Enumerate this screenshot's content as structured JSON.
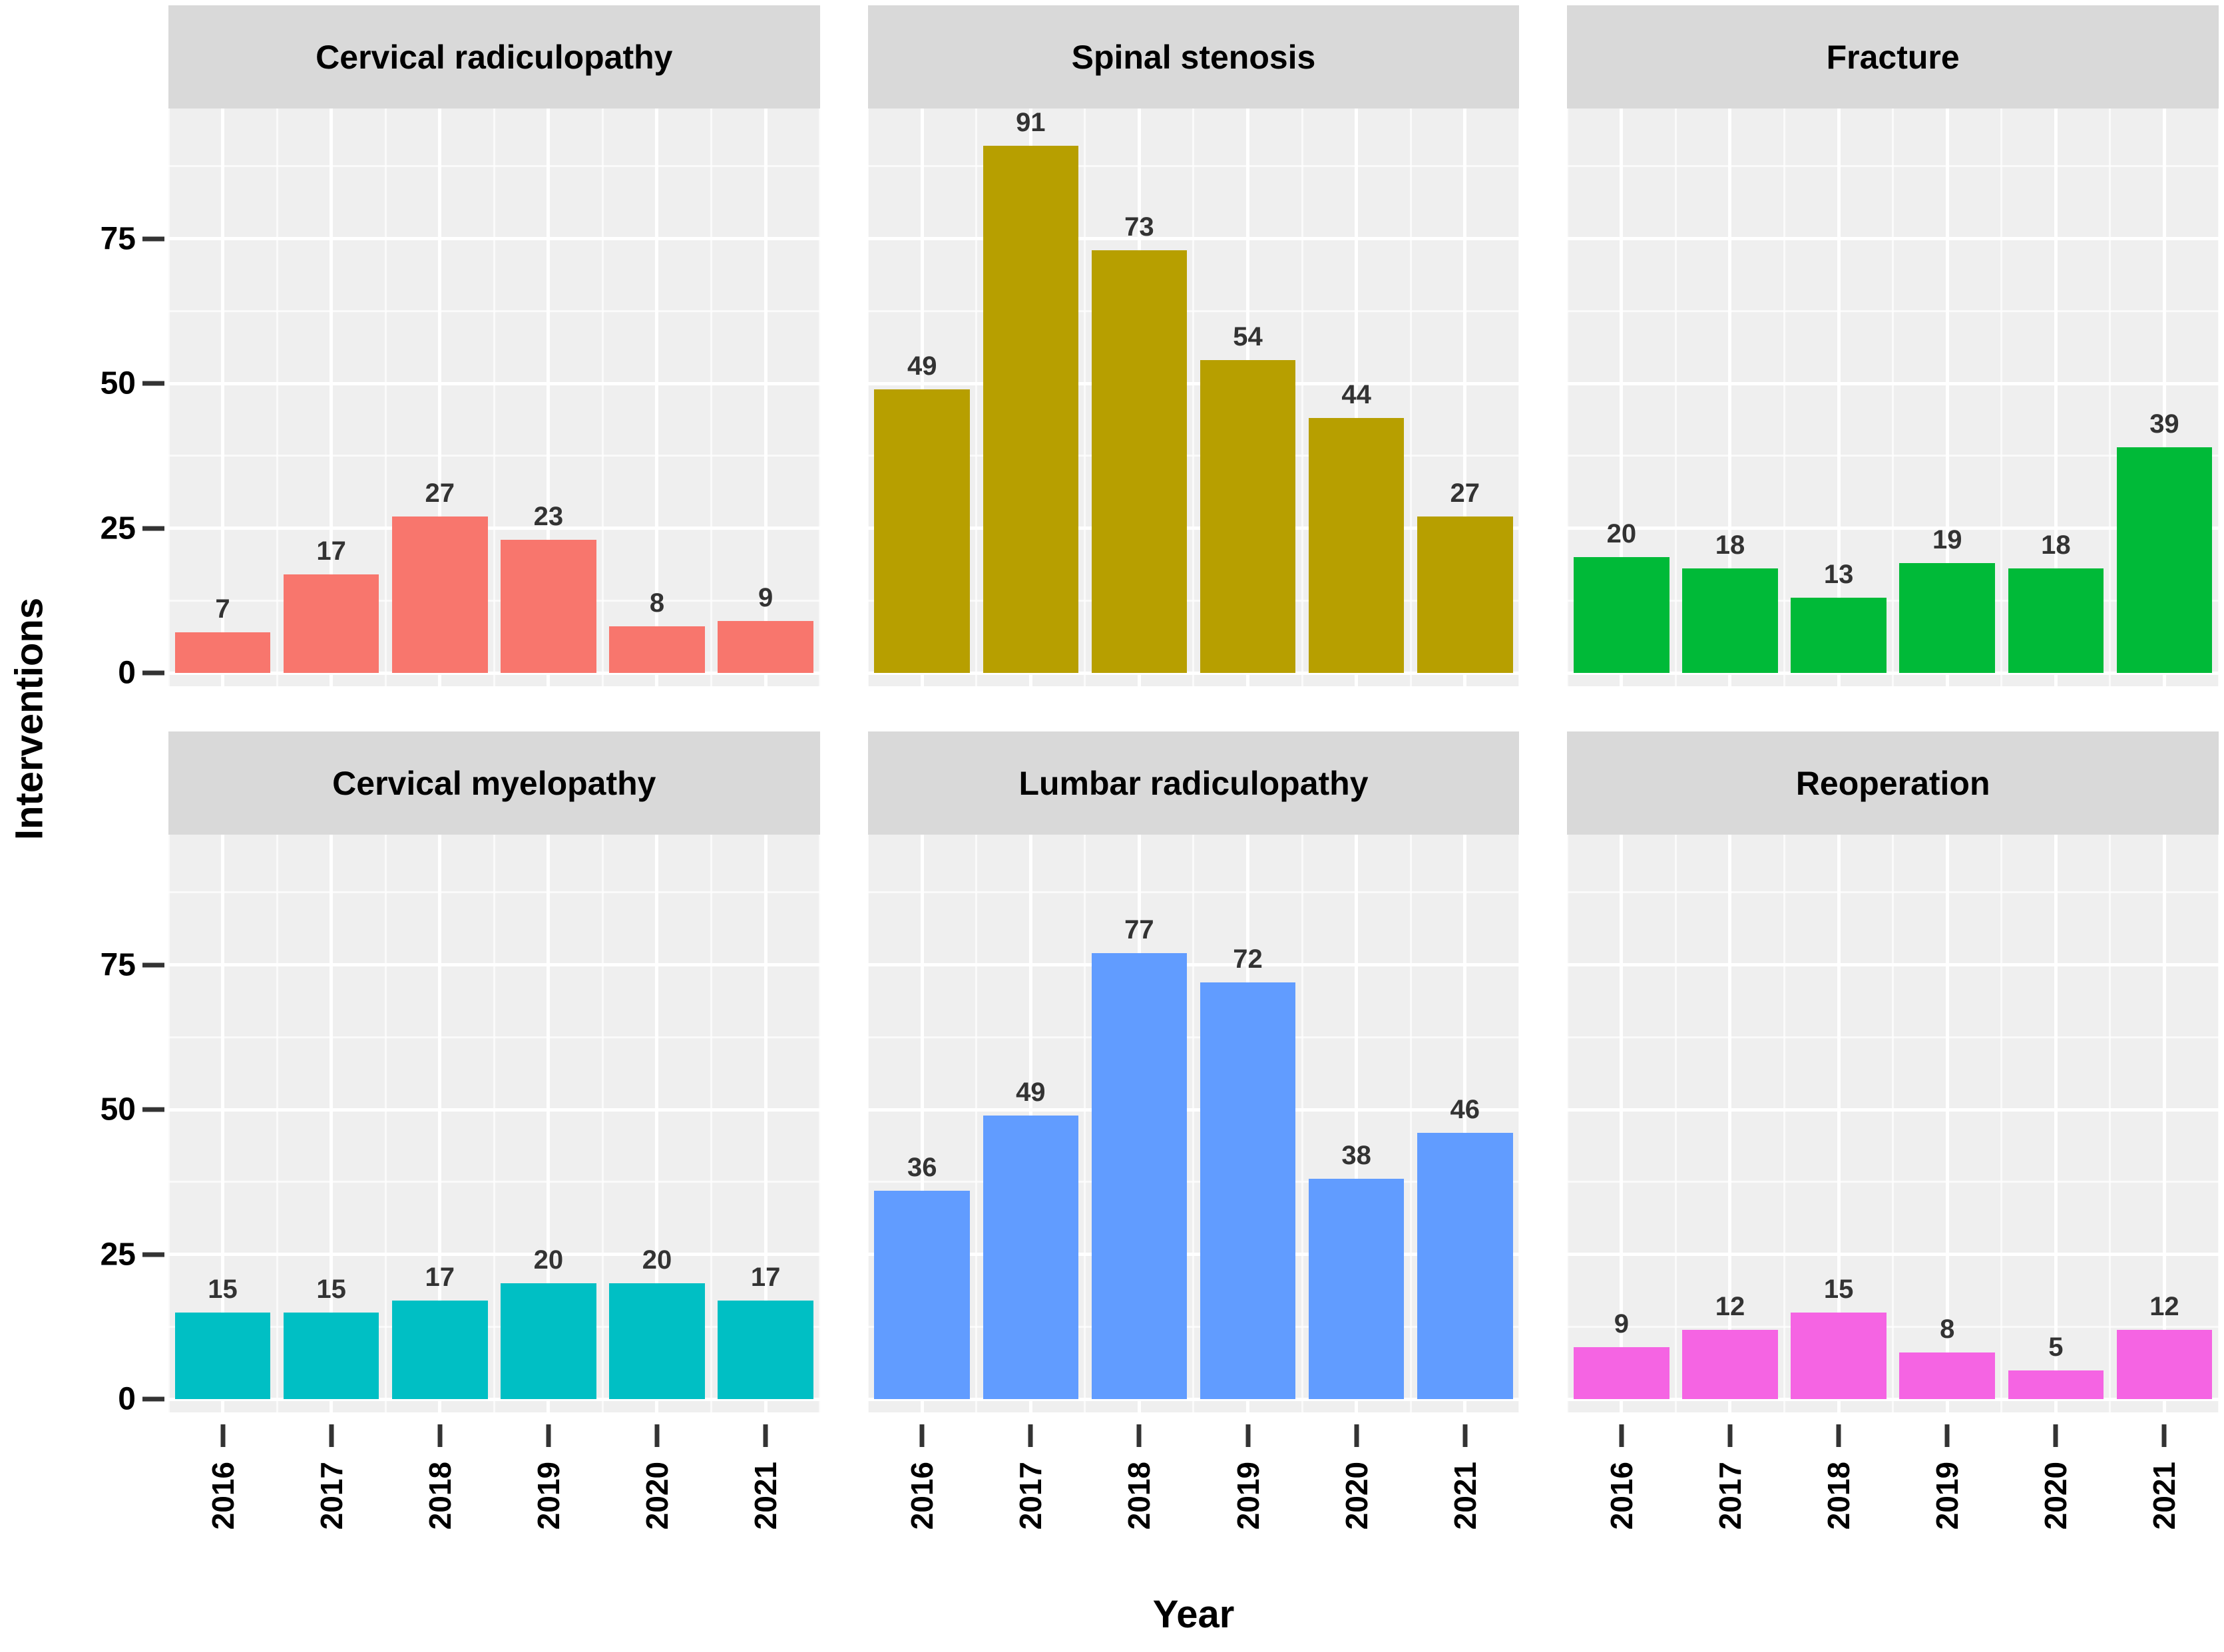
{
  "figure": {
    "y_axis_title": "Interventions",
    "x_axis_title": "Year"
  },
  "chart_data": {
    "type": "bar",
    "categories": [
      "2016",
      "2017",
      "2018",
      "2019",
      "2020",
      "2021"
    ],
    "xlabel": "Year",
    "ylabel": "Interventions",
    "y_ticks": [
      0,
      25,
      50,
      75
    ],
    "ylim": [
      0,
      97
    ],
    "grid": true,
    "legend": false,
    "bar_value_labels": true,
    "facets": [
      {
        "title": "Cervical radiculopathy",
        "color": "#F8766D",
        "values": [
          7,
          17,
          27,
          23,
          8,
          9
        ]
      },
      {
        "title": "Spinal stenosis",
        "color": "#B79F00",
        "values": [
          49,
          91,
          73,
          54,
          44,
          27
        ]
      },
      {
        "title": "Fracture",
        "color": "#00BA38",
        "values": [
          20,
          18,
          13,
          19,
          18,
          39
        ]
      },
      {
        "title": "Cervical myelopathy",
        "color": "#00BFC4",
        "values": [
          15,
          15,
          17,
          20,
          20,
          17
        ]
      },
      {
        "title": "Lumbar radiculopathy",
        "color": "#619CFF",
        "values": [
          36,
          49,
          77,
          72,
          38,
          46
        ]
      },
      {
        "title": "Reoperation",
        "color": "#F564E3",
        "values": [
          9,
          12,
          15,
          8,
          5,
          12
        ]
      }
    ]
  },
  "style": {
    "panel_bg": "#EFEFEF",
    "strip_bg": "#D9D9D9",
    "grid_major": "#FFFFFF",
    "tick_color": "#333333",
    "value_label_color": "#333333",
    "text_color": "#000000"
  }
}
